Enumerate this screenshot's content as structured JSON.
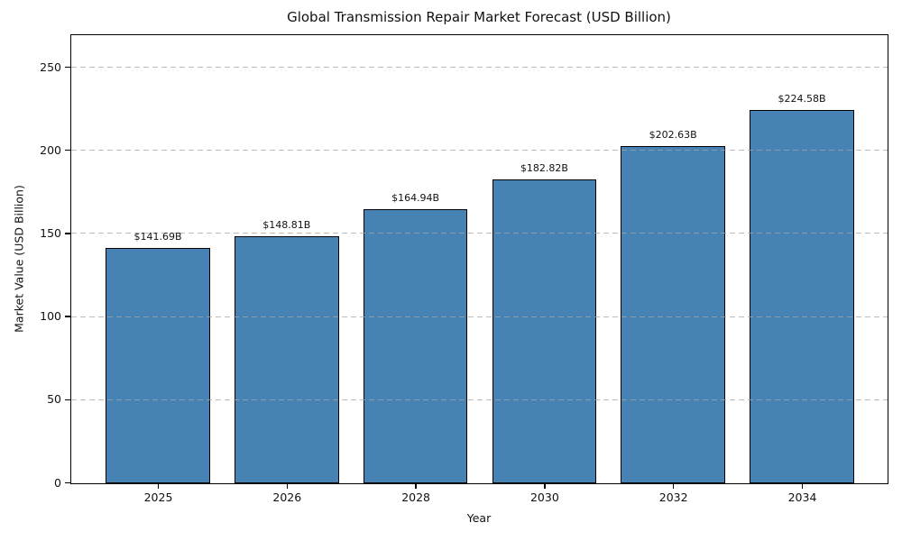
{
  "chart_data": {
    "type": "bar",
    "title": "Global Transmission Repair Market Forecast (USD Billion)",
    "xlabel": "Year",
    "ylabel": "Market Value (USD Billion)",
    "categories": [
      "2025",
      "2026",
      "2028",
      "2030",
      "2032",
      "2034"
    ],
    "values": [
      141.69,
      148.81,
      164.94,
      182.82,
      202.63,
      224.58
    ],
    "bar_labels": [
      "$141.69B",
      "$148.81B",
      "$164.94B",
      "$182.82B",
      "$202.63B",
      "$224.58B"
    ],
    "yticks": [
      0,
      50,
      100,
      150,
      200,
      250
    ],
    "ylim": [
      0,
      269
    ],
    "grid": "horizontal-dashed-over-bars",
    "legend": "none",
    "colors": {
      "bar_fill": "#4682B4",
      "bar_edge": "#000000",
      "grid": "#a5a5a5",
      "text": "#111111",
      "background": "#ffffff"
    }
  }
}
